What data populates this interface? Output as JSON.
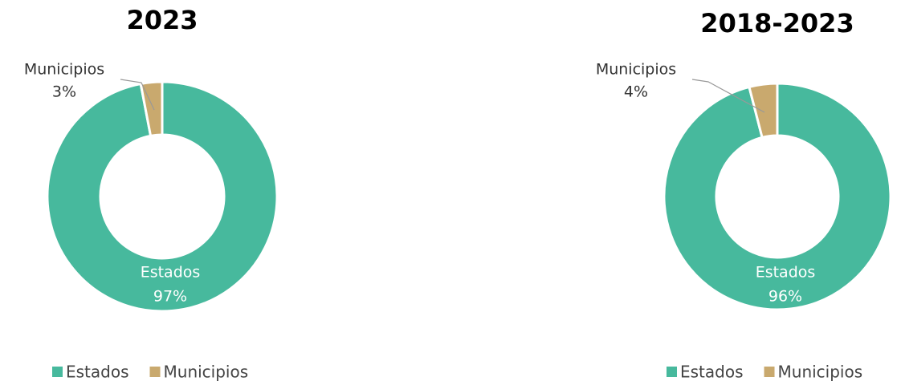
{
  "chart_data": [
    {
      "type": "pie",
      "title": "2023",
      "categories": [
        "Estados",
        "Municipios"
      ],
      "values": [
        97,
        3
      ],
      "value_labels": [
        "97%",
        "3%"
      ],
      "colors": [
        "#47b99d",
        "#c9a96e"
      ],
      "donut": true,
      "legend": "bottom"
    },
    {
      "type": "pie",
      "title": "2018-2023",
      "categories": [
        "Estados",
        "Municipios"
      ],
      "values": [
        96,
        4
      ],
      "value_labels": [
        "96%",
        "4%"
      ],
      "colors": [
        "#47b99d",
        "#c9a96e"
      ],
      "donut": true,
      "legend": "bottom"
    }
  ]
}
